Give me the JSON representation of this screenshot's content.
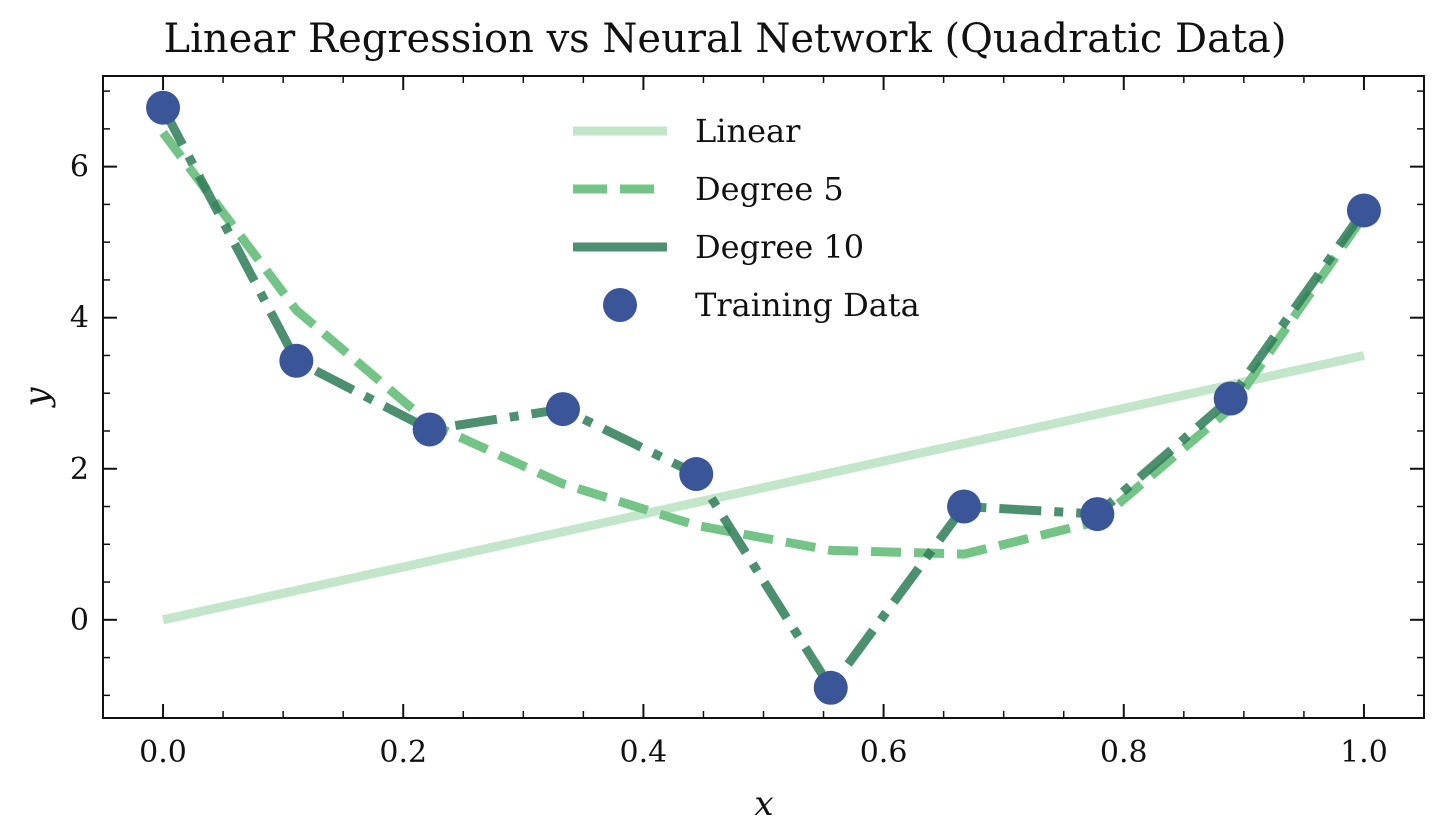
{
  "chart_data": {
    "type": "line",
    "title": "Linear Regression vs Neural Network (Quadratic Data)",
    "xlabel": "x",
    "ylabel": "y",
    "xlim": [
      -0.05,
      1.05
    ],
    "ylim": [
      -1.3,
      7.2
    ],
    "xticks": [
      0.0,
      0.2,
      0.4,
      0.6,
      0.8,
      1.0
    ],
    "xtick_labels": [
      "0.0",
      "0.2",
      "0.4",
      "0.6",
      "0.8",
      "1.0"
    ],
    "xminor": [
      0.05,
      0.1,
      0.15,
      0.25,
      0.3,
      0.35,
      0.45,
      0.5,
      0.55,
      0.65,
      0.7,
      0.75,
      0.85,
      0.9,
      0.95
    ],
    "yticks": [
      0,
      2,
      4,
      6
    ],
    "ytick_labels": [
      "0",
      "2",
      "4",
      "6"
    ],
    "yminor": [
      -1,
      -0.5,
      0.5,
      1,
      1.5,
      2.5,
      3,
      3.5,
      4.5,
      5,
      5.5,
      6.5,
      7
    ],
    "legend_position": "top-center",
    "series": [
      {
        "name": "Linear",
        "kind": "line",
        "style": "solid",
        "color": "#c3e6cb",
        "x": [
          0.0,
          1.0
        ],
        "y": [
          0.0,
          3.5
        ]
      },
      {
        "name": "Degree 5",
        "kind": "line",
        "style": "dashed",
        "color": "#74c487",
        "x": [
          0.0,
          0.111,
          0.222,
          0.333,
          0.444,
          0.556,
          0.667,
          0.778,
          0.889,
          1.0
        ],
        "y": [
          6.45,
          4.1,
          2.6,
          1.8,
          1.25,
          0.92,
          0.87,
          1.3,
          2.8,
          5.35
        ]
      },
      {
        "name": "Degree 10",
        "kind": "line",
        "style": "dashdot",
        "color": "#2e7d57",
        "x": [
          0.0,
          0.111,
          0.222,
          0.333,
          0.444,
          0.556,
          0.667,
          0.778,
          0.889,
          1.0
        ],
        "y": [
          6.78,
          3.43,
          2.52,
          2.79,
          1.93,
          -0.9,
          1.5,
          1.4,
          2.93,
          5.42
        ]
      },
      {
        "name": "Training Data",
        "kind": "scatter",
        "color": "#3a5699",
        "x": [
          0.0,
          0.111,
          0.222,
          0.333,
          0.444,
          0.556,
          0.667,
          0.778,
          0.889,
          1.0
        ],
        "y": [
          6.78,
          3.43,
          2.52,
          2.79,
          1.93,
          -0.9,
          1.5,
          1.4,
          2.93,
          5.42
        ]
      }
    ]
  }
}
